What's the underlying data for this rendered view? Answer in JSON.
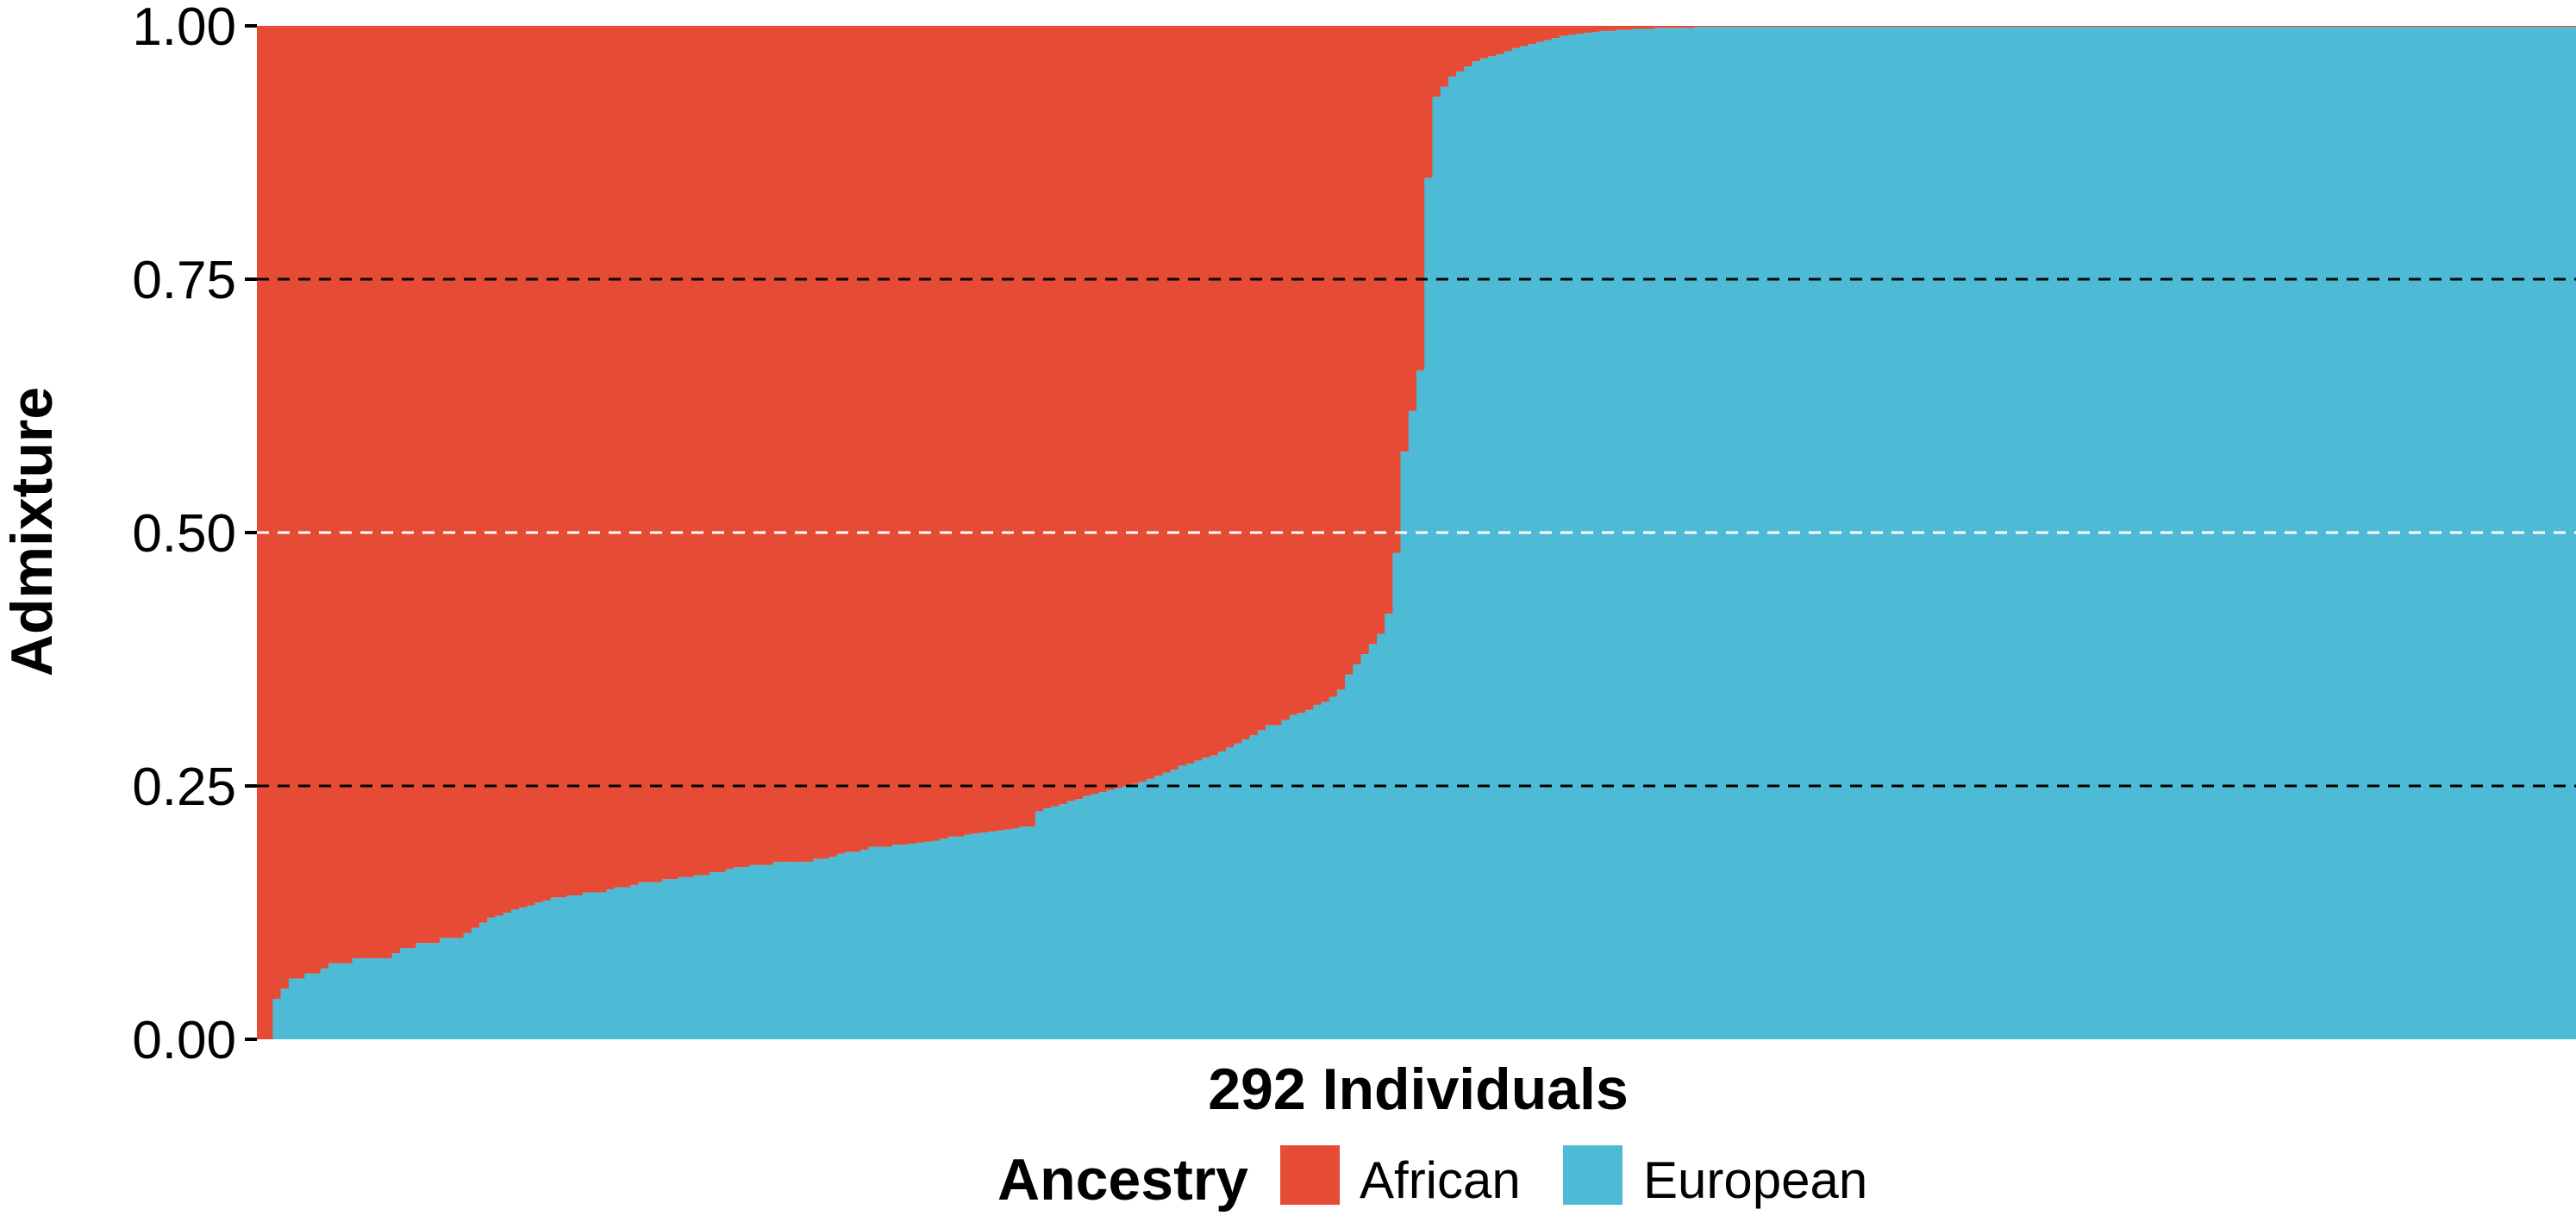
{
  "chart_data": {
    "type": "bar",
    "stacked": true,
    "title": "",
    "xlabel": "292 Individuals",
    "ylabel": "Admixture",
    "ylim": [
      0,
      1
    ],
    "yticks": [
      "0.00",
      "0.25",
      "0.50",
      "0.75",
      "1.00"
    ],
    "ytick_values": [
      0,
      0.25,
      0.5,
      0.75,
      1
    ],
    "n_individuals": 292,
    "gridlines": "dashed horizontal at 0.25, 0.50, 0.75",
    "legend": {
      "title": "Ancestry",
      "position": "bottom"
    },
    "series": [
      {
        "name": "African",
        "color": "#E64B35",
        "position": "top"
      },
      {
        "name": "European",
        "color": "#4DBBD5",
        "position": "bottom"
      }
    ],
    "european_fraction": [
      0.0,
      0.0,
      0.04,
      0.05,
      0.06,
      0.06,
      0.065,
      0.065,
      0.07,
      0.075,
      0.075,
      0.075,
      0.08,
      0.08,
      0.08,
      0.08,
      0.08,
      0.085,
      0.09,
      0.09,
      0.095,
      0.095,
      0.095,
      0.1,
      0.1,
      0.1,
      0.105,
      0.11,
      0.115,
      0.12,
      0.122,
      0.125,
      0.128,
      0.13,
      0.132,
      0.135,
      0.137,
      0.14,
      0.14,
      0.142,
      0.142,
      0.145,
      0.145,
      0.145,
      0.148,
      0.15,
      0.15,
      0.152,
      0.155,
      0.155,
      0.155,
      0.158,
      0.158,
      0.16,
      0.16,
      0.162,
      0.162,
      0.165,
      0.165,
      0.168,
      0.17,
      0.17,
      0.172,
      0.172,
      0.172,
      0.175,
      0.175,
      0.175,
      0.175,
      0.175,
      0.178,
      0.178,
      0.18,
      0.183,
      0.185,
      0.185,
      0.187,
      0.19,
      0.19,
      0.19,
      0.192,
      0.192,
      0.193,
      0.194,
      0.195,
      0.196,
      0.198,
      0.2,
      0.2,
      0.202,
      0.203,
      0.204,
      0.205,
      0.206,
      0.207,
      0.208,
      0.21,
      0.21,
      0.225,
      0.228,
      0.23,
      0.232,
      0.235,
      0.237,
      0.24,
      0.242,
      0.244,
      0.246,
      0.248,
      0.25,
      0.252,
      0.254,
      0.257,
      0.26,
      0.263,
      0.266,
      0.27,
      0.272,
      0.275,
      0.278,
      0.28,
      0.284,
      0.288,
      0.292,
      0.296,
      0.3,
      0.305,
      0.31,
      0.31,
      0.315,
      0.32,
      0.322,
      0.325,
      0.33,
      0.333,
      0.338,
      0.345,
      0.36,
      0.37,
      0.38,
      0.39,
      0.4,
      0.42,
      0.48,
      0.58,
      0.62,
      0.66,
      0.85,
      0.93,
      0.94,
      0.95,
      0.955,
      0.96,
      0.965,
      0.968,
      0.97,
      0.972,
      0.975,
      0.978,
      0.98,
      0.982,
      0.984,
      0.986,
      0.988,
      0.99,
      0.991,
      0.992,
      0.993,
      0.994,
      0.995,
      0.995,
      0.996,
      0.996,
      0.997,
      0.997,
      0.997,
      0.998,
      0.998,
      0.998,
      0.998,
      0.998,
      0.999,
      0.999,
      0.999,
      0.999,
      0.999,
      0.999,
      0.999,
      0.999,
      0.999,
      0.999,
      0.999,
      0.999,
      0.999,
      0.999,
      0.999,
      0.999,
      0.999,
      0.999,
      0.999,
      0.999,
      0.999,
      0.999,
      0.999,
      0.999,
      0.999,
      0.999,
      0.999,
      0.999,
      0.999,
      0.999,
      0.999,
      0.999,
      0.999,
      0.999,
      0.999,
      0.999,
      0.999,
      0.999,
      0.999,
      0.999,
      0.999,
      0.999,
      0.999,
      0.999,
      0.999,
      0.999,
      0.999,
      0.999,
      0.999,
      0.999,
      0.999,
      0.999,
      0.999,
      0.999,
      0.999,
      0.999,
      0.999,
      0.999,
      0.999,
      0.999,
      0.999,
      0.999,
      0.999,
      0.999,
      0.999,
      0.999,
      0.999,
      0.999,
      0.999,
      0.999,
      0.999,
      0.999,
      0.999,
      0.999,
      0.999,
      0.999,
      0.999,
      0.999,
      0.999,
      0.999,
      0.999,
      0.999,
      0.999,
      0.999,
      0.999,
      0.999,
      0.999,
      0.999,
      0.999,
      0.999,
      0.999,
      0.999,
      0.999,
      0.999,
      0.999,
      0.999,
      0.999,
      0.999,
      0.999,
      0.999,
      0.999,
      0.999,
      0.999,
      0.999,
      0.999,
      0.999,
      0.999,
      0.999,
      0.999,
      0.999,
      0.999
    ]
  }
}
